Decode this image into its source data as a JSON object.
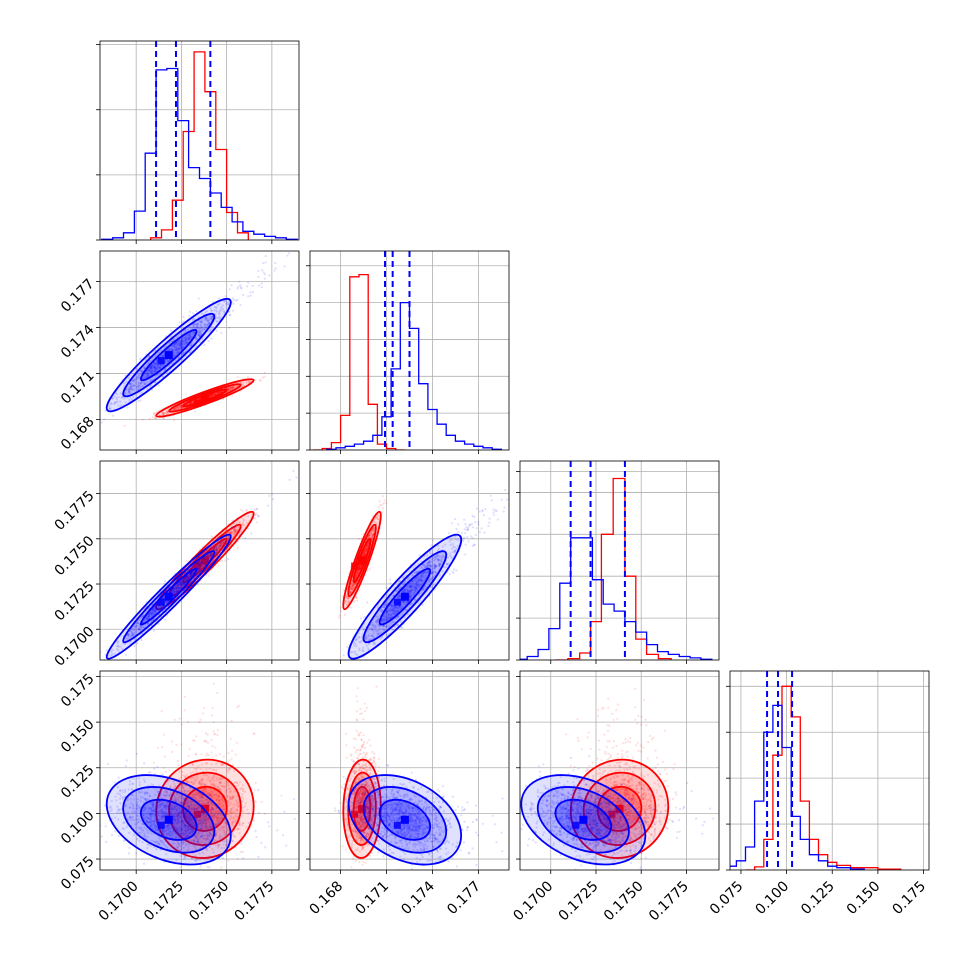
{
  "colors": {
    "red": "#ff0000",
    "blue": "#0000ff",
    "grid": "#b0b0b0",
    "frame": "#000000"
  },
  "chart_data": {
    "type": "corner",
    "grid": true,
    "series": [
      {
        "color": "#ff0000",
        "means": [
          0.1738,
          0.1694,
          0.1738,
          0.1025
        ],
        "sds": [
          0.0011,
          0.0005,
          0.0011,
          0.011
        ],
        "hist": [
          {
            "centers": [
              0.1711,
              0.1717,
              0.1723,
              0.1729,
              0.1735,
              0.1741,
              0.1747,
              0.1753,
              0.1759
            ],
            "values": [
              3,
              14,
              55,
              150,
              260,
              205,
              125,
              38,
              10
            ]
          },
          {
            "centers": [
              0.1665,
              0.1671,
              0.1677,
              0.1683,
              0.1689,
              0.1695,
              0.1701,
              0.1707,
              0.1713,
              0.1719
            ],
            "values": [
              0,
              2,
              10,
              47,
              235,
              238,
              62,
              8,
              2,
              0
            ]
          },
          {
            "centers": [
              0.1706,
              0.1713,
              0.1719,
              0.1725,
              0.1731,
              0.1738,
              0.1744,
              0.175,
              0.1756,
              0.1763
            ],
            "values": [
              0,
              2,
              10,
              55,
              180,
              260,
              120,
              30,
              8,
              2
            ]
          },
          {
            "centers": [
              0.08,
              0.085,
              0.09,
              0.095,
              0.1,
              0.105,
              0.11,
              0.115,
              0.12,
              0.125,
              0.13,
              0.14,
              0.16
            ],
            "values": [
              0,
              4,
              40,
              150,
              240,
              200,
              90,
              40,
              20,
              10,
              6,
              3,
              1
            ]
          }
        ]
      },
      {
        "color": "#0000ff",
        "means": [
          0.1718,
          0.1722,
          0.1718,
          0.0965
        ],
        "sds": [
          0.0014,
          0.0015,
          0.0014,
          0.01
        ],
        "hist": [
          {
            "centers": [
              0.1684,
              0.169,
              0.1696,
              0.1702,
              0.1708,
              0.1714,
              0.172,
              0.1726,
              0.1732,
              0.1738,
              0.1744,
              0.175,
              0.1756,
              0.1762,
              0.1768,
              0.1774,
              0.178,
              0.1786
            ],
            "values": [
              1,
              3,
              10,
              40,
              120,
              235,
              237,
              165,
              100,
              85,
              65,
              45,
              25,
              12,
              8,
              5,
              3,
              1
            ]
          },
          {
            "centers": [
              0.1674,
              0.168,
              0.1686,
              0.1692,
              0.1698,
              0.1704,
              0.171,
              0.1716,
              0.1722,
              0.1728,
              0.1734,
              0.174,
              0.1746,
              0.1752,
              0.1758,
              0.1764,
              0.177,
              0.1776,
              0.1782
            ],
            "values": [
              1,
              3,
              5,
              8,
              12,
              20,
              45,
              110,
              200,
              165,
              90,
              55,
              35,
              20,
              12,
              8,
              5,
              3,
              1
            ]
          },
          {
            "centers": [
              0.1684,
              0.169,
              0.1696,
              0.1702,
              0.1708,
              0.1714,
              0.172,
              0.1726,
              0.1732,
              0.1738,
              0.1744,
              0.175,
              0.1756,
              0.1762,
              0.1768,
              0.1774,
              0.178,
              0.1786
            ],
            "values": [
              1,
              5,
              15,
              45,
              110,
              175,
              175,
              115,
              80,
              70,
              55,
              40,
              22,
              12,
              8,
              5,
              3,
              1
            ]
          },
          {
            "centers": [
              0.065,
              0.07,
              0.075,
              0.08,
              0.085,
              0.09,
              0.095,
              0.1,
              0.105,
              0.11,
              0.115,
              0.12,
              0.125,
              0.13,
              0.14
            ],
            "values": [
              2,
              5,
              12,
              30,
              90,
              180,
              215,
              160,
              70,
              40,
              20,
              12,
              5,
              3,
              1
            ]
          }
        ]
      }
    ],
    "quantile_lines": {
      "color": "#0000ff",
      "values": [
        [
          0.1711,
          0.1722,
          0.1741
        ],
        [
          0.1709,
          0.1714,
          0.1725
        ],
        [
          0.1711,
          0.1722,
          0.1741
        ],
        [
          0.0893,
          0.0953,
          0.103
        ]
      ]
    },
    "axes": [
      {
        "lim": [
          0.168,
          0.179
        ],
        "ticks": [
          0.17,
          0.1725,
          0.175,
          0.1775
        ],
        "tick_labels": [
          "0.1700",
          "0.1725",
          "0.1750",
          "0.1775"
        ]
      },
      {
        "lim": [
          0.166,
          0.179
        ],
        "ticks": [
          0.168,
          0.171,
          0.174,
          0.177
        ],
        "tick_labels": [
          "0.168",
          "0.171",
          "0.174",
          "0.177"
        ]
      },
      {
        "lim": [
          0.1683,
          0.1793
        ],
        "ticks": [
          0.17,
          0.1725,
          0.175,
          0.1775
        ],
        "tick_labels": [
          "0.1700",
          "0.1725",
          "0.1750",
          "0.1775"
        ]
      },
      {
        "lim": [
          0.069,
          0.178
        ],
        "ticks": [
          0.075,
          0.1,
          0.125,
          0.15,
          0.175
        ],
        "tick_labels": [
          "0.075",
          "0.100",
          "0.125",
          "0.150",
          "0.175"
        ]
      }
    ],
    "hist_ylim": [
      [
        0,
        275
      ],
      [
        0,
        270
      ],
      [
        0,
        285
      ],
      [
        0,
        260
      ]
    ],
    "hist_yticks": [
      [
        0,
        90,
        180,
        270
      ],
      [
        0,
        50,
        100,
        150,
        200,
        250
      ],
      [
        0,
        60,
        120,
        180,
        240,
        270
      ],
      [
        0,
        60,
        120,
        180,
        240
      ]
    ],
    "pairs": [
      {
        "row": 1,
        "col": 0,
        "corr": [
          0.94,
          0.94
        ]
      },
      {
        "row": 2,
        "col": 0,
        "corr": [
          0.96,
          0.97
        ]
      },
      {
        "row": 2,
        "col": 1,
        "corr": [
          0.92,
          0.92
        ]
      },
      {
        "row": 3,
        "col": 0,
        "corr": [
          0.05,
          -0.35
        ]
      },
      {
        "row": 3,
        "col": 1,
        "corr": [
          0.05,
          -0.35
        ]
      },
      {
        "row": 3,
        "col": 2,
        "corr": [
          0.05,
          -0.35
        ]
      }
    ]
  }
}
